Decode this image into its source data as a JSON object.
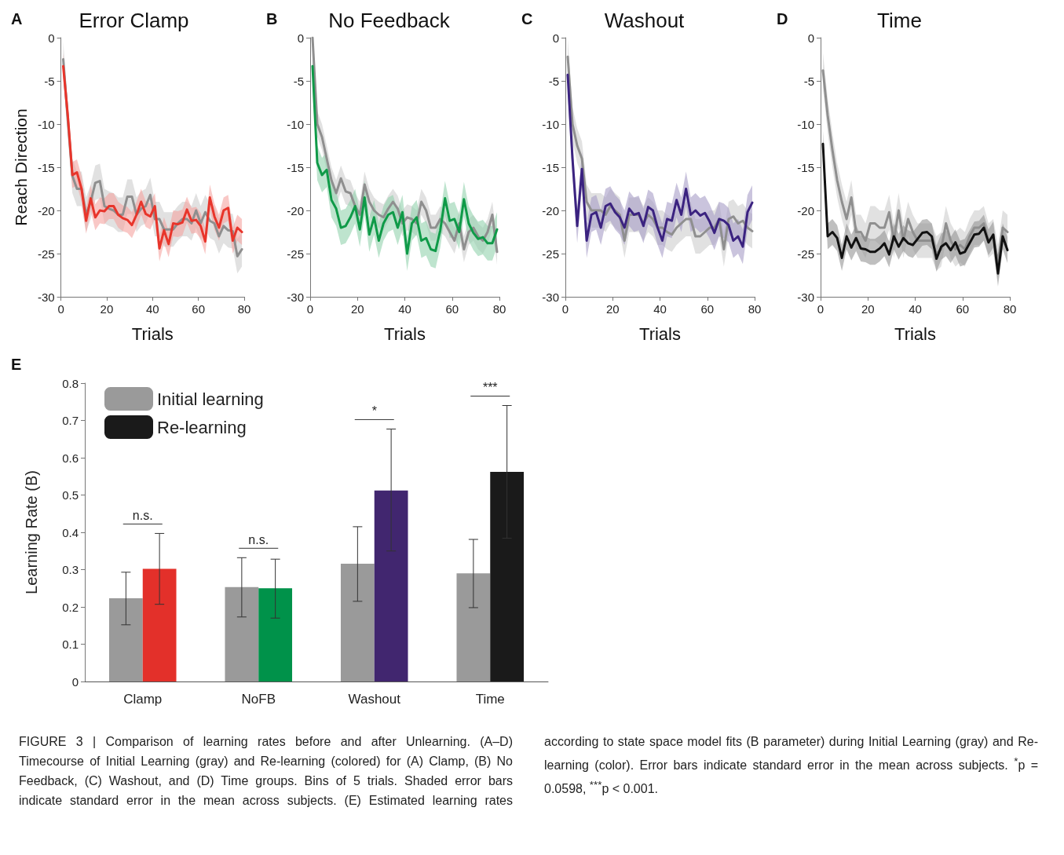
{
  "chart_data": [
    {
      "type": "line",
      "title": "Error Clamp",
      "xlabel": "Trials",
      "ylabel": "Reach Direction",
      "annotations": [
        "A"
      ],
      "xlim": [
        0,
        80
      ],
      "xticks": [
        0,
        20,
        40,
        60,
        80
      ],
      "ylim": [
        -30,
        0
      ],
      "yticks": [
        -30,
        -25,
        -20,
        -15,
        -10,
        -5,
        0
      ],
      "grid": false,
      "legend": false,
      "marker": "none",
      "line_style": "solid",
      "x": [
        1,
        3,
        5,
        7,
        9,
        11,
        13,
        15,
        17,
        19,
        21,
        23,
        25,
        27,
        29,
        31,
        33,
        35,
        37,
        39,
        41,
        43,
        45,
        47,
        49,
        51,
        53,
        55,
        57,
        59,
        61,
        63,
        65,
        67,
        69,
        71,
        73,
        75,
        77,
        79
      ],
      "series": [
        {
          "color": "#8f8f8f",
          "values": [
            -2.5,
            -9.5,
            -16,
            -17.5,
            -17.5,
            -20.5,
            -19,
            -16.8,
            -16.6,
            -19.5,
            -19.8,
            -20,
            -20.5,
            -20.5,
            -18.4,
            -18.4,
            -20.5,
            -19.8,
            -19.5,
            -18.2,
            -21,
            -21,
            -22.2,
            -22.2,
            -22.2,
            -21.5,
            -21,
            -21,
            -21.5,
            -20,
            -21.5,
            -20.2,
            -21.2,
            -21.5,
            -23,
            -21.8,
            -22.3,
            -22.4,
            -25.3,
            -24.5
          ],
          "lower": [
            -4.5,
            -11.5,
            -18,
            -19.5,
            -19.5,
            -22.5,
            -21,
            -18.8,
            -18.6,
            -21.5,
            -21.8,
            -22,
            -22.5,
            -22.5,
            -20.4,
            -20.4,
            -22.5,
            -21.8,
            -21.5,
            -20.2,
            -23,
            -23,
            -24.2,
            -24.2,
            -24.2,
            -23.5,
            -23,
            -23,
            -23.5,
            -22,
            -23.5,
            -22.2,
            -23.2,
            -23.5,
            -25,
            -23.8,
            -24.3,
            -24.4,
            -27.3,
            -26.5
          ],
          "upper": [
            -0.5,
            -7.5,
            -14,
            -15.5,
            -15.5,
            -18.5,
            -17,
            -14.8,
            -14.6,
            -17.5,
            -17.8,
            -18,
            -18.5,
            -18.5,
            -16.4,
            -16.4,
            -18.5,
            -17.8,
            -17.5,
            -16.2,
            -19,
            -19,
            -20.2,
            -20.2,
            -20.2,
            -19.5,
            -19,
            -19,
            -19.5,
            -18,
            -19.5,
            -18.2,
            -19.2,
            -19.5,
            -21,
            -19.8,
            -20.3,
            -20.4,
            -23.3,
            -22.5
          ]
        },
        {
          "color": "#e8352b",
          "values": [
            -3.3,
            -9,
            -15.9,
            -15.6,
            -17.5,
            -21.2,
            -18.6,
            -20.8,
            -20,
            -20.1,
            -19.5,
            -19.5,
            -20.5,
            -20.9,
            -21.1,
            -21.7,
            -20.5,
            -19,
            -20.4,
            -20.7,
            -19.5,
            -24.4,
            -22.3,
            -23.9,
            -21.5,
            -21.6,
            -21.4,
            -19.9,
            -21.2,
            -21.1,
            -21.8,
            -23.6,
            -18.5,
            -20.7,
            -22,
            -20,
            -19.7,
            -23.5,
            -22,
            -22.5
          ],
          "lower": [
            -4.8,
            -10.5,
            -17.4,
            -17.1,
            -19,
            -22.7,
            -20.1,
            -22.3,
            -21.5,
            -21.6,
            -21,
            -21,
            -22,
            -22.4,
            -22.6,
            -23.2,
            -22,
            -20.5,
            -21.9,
            -22.2,
            -21,
            -25.9,
            -23.8,
            -25.4,
            -23,
            -23.1,
            -22.9,
            -21.4,
            -22.7,
            -22.6,
            -23.3,
            -25.1,
            -20,
            -22.2,
            -23.5,
            -21.5,
            -21.2,
            -25,
            -23.5,
            -24
          ],
          "upper": [
            -1.8,
            -7.5,
            -14.4,
            -14.1,
            -16,
            -19.7,
            -17.1,
            -19.3,
            -18.5,
            -18.6,
            -18,
            -18,
            -19,
            -19.4,
            -19.6,
            -20.2,
            -19,
            -17.5,
            -18.9,
            -19.2,
            -18,
            -22.9,
            -20.8,
            -22.4,
            -20,
            -20.1,
            -19.9,
            -18.4,
            -19.7,
            -19.6,
            -20.3,
            -22.1,
            -17,
            -19.2,
            -20.5,
            -18.5,
            -18.2,
            -22,
            -20.5,
            -21
          ]
        }
      ]
    },
    {
      "type": "line",
      "title": "No Feedback",
      "xlabel": "Trials",
      "annotations": [
        "B"
      ],
      "xlim": [
        0,
        80
      ],
      "xticks": [
        0,
        20,
        40,
        60,
        80
      ],
      "ylim": [
        -30,
        0
      ],
      "yticks": [
        -30,
        -25,
        -20,
        -15,
        -10,
        -5,
        0
      ],
      "grid": false,
      "legend": false,
      "marker": "none",
      "line_style": "solid",
      "x": [
        1,
        3,
        5,
        7,
        9,
        11,
        13,
        15,
        17,
        19,
        21,
        23,
        25,
        27,
        29,
        31,
        33,
        35,
        37,
        39,
        41,
        43,
        45,
        47,
        49,
        51,
        53,
        55,
        57,
        59,
        61,
        63,
        65,
        67,
        69,
        71,
        73,
        75,
        77,
        79
      ],
      "series": [
        {
          "color": "#8f8f8f",
          "values": [
            0,
            -10,
            -11.5,
            -14,
            -16.5,
            -18,
            -16.3,
            -17.8,
            -18,
            -19.5,
            -20.5,
            -17,
            -19,
            -20,
            -20.5,
            -20.8,
            -19.8,
            -19,
            -19.8,
            -21.5,
            -20.8,
            -21,
            -21.5,
            -19,
            -20,
            -22,
            -22,
            -21,
            -21.5,
            -22.5,
            -23.5,
            -21.5,
            -24.5,
            -22.5,
            -22,
            -23,
            -23.5,
            -22.5,
            -20.5,
            -24.8
          ],
          "lower": [
            -1.5,
            -11.5,
            -13,
            -15.5,
            -18,
            -19.5,
            -17.8,
            -19.3,
            -19.5,
            -21,
            -22,
            -18.5,
            -20.5,
            -21.5,
            -22,
            -22.3,
            -21.3,
            -20.5,
            -21.3,
            -23,
            -22.3,
            -22.5,
            -23,
            -20.5,
            -21.5,
            -23.5,
            -23.5,
            -22.5,
            -23,
            -24,
            -25,
            -23,
            -26,
            -24,
            -23.5,
            -24.5,
            -25,
            -24,
            -22,
            -26.3
          ],
          "upper": [
            0,
            -8.5,
            -10,
            -12.5,
            -15,
            -16.5,
            -14.8,
            -16.3,
            -16.5,
            -18,
            -19,
            -15.5,
            -17.5,
            -18.5,
            -19,
            -19.3,
            -18.3,
            -17.5,
            -18.3,
            -20,
            -19.3,
            -19.5,
            -20,
            -17.5,
            -18.5,
            -20.5,
            -20.5,
            -19.5,
            -20,
            -21,
            -22,
            -20,
            -23,
            -21,
            -20.5,
            -21.5,
            -22,
            -21,
            -19,
            -23.3
          ]
        },
        {
          "color": "#0f9a48",
          "values": [
            -3.3,
            -14.5,
            -15.9,
            -15.3,
            -18.8,
            -19.8,
            -22,
            -21.8,
            -20.8,
            -19.5,
            -22.2,
            -18.5,
            -22.8,
            -20.8,
            -23.5,
            -21.5,
            -20.5,
            -20.2,
            -22,
            -20.2,
            -25,
            -21.5,
            -20.8,
            -23.5,
            -23.2,
            -24.5,
            -24.7,
            -22.3,
            -18.6,
            -21.2,
            -21,
            -22.5,
            -18.7,
            -21.5,
            -22.6,
            -23.3,
            -23.1,
            -23.8,
            -23.8,
            -22.2
          ],
          "lower": [
            -5.3,
            -16.5,
            -17.9,
            -17.3,
            -20.8,
            -21.8,
            -24,
            -23.8,
            -22.8,
            -21.5,
            -24.2,
            -20.5,
            -24.8,
            -22.8,
            -25.5,
            -23.5,
            -22.5,
            -22.2,
            -24,
            -22.2,
            -27,
            -23.5,
            -22.8,
            -25.5,
            -25.2,
            -26.5,
            -26.7,
            -24.3,
            -20.6,
            -23.2,
            -23,
            -24.5,
            -20.7,
            -23.5,
            -24.6,
            -25.3,
            -25.1,
            -25.8,
            -25.8,
            -24.2
          ],
          "upper": [
            -1.3,
            -12.5,
            -13.9,
            -13.3,
            -16.8,
            -17.8,
            -20,
            -19.8,
            -18.8,
            -17.5,
            -20.2,
            -16.5,
            -20.8,
            -18.8,
            -21.5,
            -19.5,
            -18.5,
            -18.2,
            -20,
            -18.2,
            -23,
            -19.5,
            -18.8,
            -21.5,
            -21.2,
            -22.5,
            -22.7,
            -20.3,
            -16.6,
            -19.2,
            -19,
            -20.5,
            -16.7,
            -19.5,
            -20.6,
            -21.3,
            -21.1,
            -21.8,
            -21.8,
            -20.2
          ]
        }
      ]
    },
    {
      "type": "line",
      "title": "Washout",
      "xlabel": "Trials",
      "annotations": [
        "C"
      ],
      "xlim": [
        0,
        80
      ],
      "xticks": [
        0,
        20,
        40,
        60,
        80
      ],
      "ylim": [
        -30,
        0
      ],
      "yticks": [
        -30,
        -25,
        -20,
        -15,
        -10,
        -5,
        0
      ],
      "grid": false,
      "legend": false,
      "marker": "none",
      "line_style": "solid",
      "x": [
        1,
        3,
        5,
        7,
        9,
        11,
        13,
        15,
        17,
        19,
        21,
        23,
        25,
        27,
        29,
        31,
        33,
        35,
        37,
        39,
        41,
        43,
        45,
        47,
        49,
        51,
        53,
        55,
        57,
        59,
        61,
        63,
        65,
        67,
        69,
        71,
        73,
        75,
        77,
        79
      ],
      "series": [
        {
          "color": "#8f8f8f",
          "values": [
            -2.2,
            -10,
            -12.5,
            -14,
            -19,
            -20,
            -20,
            -20,
            -20.5,
            -19.5,
            -20,
            -20.5,
            -23.5,
            -20.5,
            -20.5,
            -20.5,
            -21.5,
            -20.5,
            -21,
            -22,
            -22,
            -22.5,
            -22.8,
            -22,
            -21.5,
            -21,
            -21,
            -23,
            -23,
            -22.5,
            -22,
            -22,
            -21,
            -24.5,
            -21,
            -20.7,
            -21.5,
            -21.2,
            -22,
            -22.4
          ],
          "lower": [
            -4.2,
            -12,
            -14.5,
            -16,
            -21,
            -22,
            -22,
            -22,
            -22.5,
            -21.5,
            -22,
            -22.5,
            -25.5,
            -22.5,
            -22.5,
            -22.5,
            -23.5,
            -22.5,
            -23,
            -24,
            -24,
            -24.5,
            -24.8,
            -24,
            -23.5,
            -23,
            -23,
            -25,
            -25,
            -24.5,
            -24,
            -24,
            -23,
            -26.5,
            -23,
            -22.7,
            -23.5,
            -23.2,
            -24,
            -24.4
          ],
          "upper": [
            -0.2,
            -8,
            -10.5,
            -12,
            -17,
            -18,
            -18,
            -18,
            -18.5,
            -17.5,
            -18,
            -18.5,
            -21.5,
            -18.5,
            -18.5,
            -18.5,
            -19.5,
            -18.5,
            -19,
            -20,
            -20,
            -20.5,
            -20.8,
            -20,
            -19.5,
            -19,
            -19,
            -21,
            -21,
            -20.5,
            -20,
            -20,
            -19,
            -22.5,
            -19,
            -18.7,
            -19.5,
            -19.2,
            -20,
            -20.4
          ]
        },
        {
          "color": "#3b2380",
          "values": [
            -4.3,
            -14,
            -21.8,
            -15.2,
            -23.5,
            -20.5,
            -20.2,
            -22,
            -19.5,
            -19.2,
            -20.2,
            -20.8,
            -22,
            -19.8,
            -20.5,
            -20.3,
            -21.8,
            -19.6,
            -20,
            -22,
            -23.5,
            -21,
            -21.2,
            -18.8,
            -20.5,
            -17.5,
            -20.5,
            -20,
            -20.6,
            -20.3,
            -21.3,
            -22.6,
            -21,
            -21.2,
            -21.7,
            -23.5,
            -23,
            -24.2,
            -20.2,
            -19.1
          ],
          "lower": [
            -6.3,
            -16,
            -23.8,
            -17.2,
            -25.5,
            -22.5,
            -22.2,
            -24,
            -21.5,
            -21.2,
            -22.2,
            -22.8,
            -24,
            -21.8,
            -22.5,
            -22.3,
            -23.8,
            -21.6,
            -22,
            -24,
            -25.5,
            -23,
            -23.2,
            -20.8,
            -22.5,
            -19.5,
            -22.5,
            -22,
            -22.6,
            -22.3,
            -23.3,
            -24.6,
            -23,
            -23.2,
            -23.7,
            -25.5,
            -25,
            -26.2,
            -22.2,
            -21.1
          ],
          "upper": [
            -2.3,
            -12,
            -19.8,
            -13.2,
            -21.5,
            -18.5,
            -18.2,
            -20,
            -17.5,
            -17.2,
            -18.2,
            -18.8,
            -20,
            -17.8,
            -18.5,
            -18.3,
            -19.8,
            -17.6,
            -18,
            -20,
            -21.5,
            -19,
            -19.2,
            -16.8,
            -18.5,
            -15.5,
            -18.5,
            -18,
            -18.6,
            -18.3,
            -19.3,
            -20.6,
            -19,
            -19.2,
            -19.7,
            -21.5,
            -21,
            -22.2,
            -18.2,
            -17.1
          ]
        }
      ]
    },
    {
      "type": "line",
      "title": "Time",
      "xlabel": "Trials",
      "annotations": [
        "D"
      ],
      "xlim": [
        0,
        80
      ],
      "xticks": [
        0,
        20,
        40,
        60,
        80
      ],
      "ylim": [
        -30,
        0
      ],
      "yticks": [
        -30,
        -25,
        -20,
        -15,
        -10,
        -5,
        0
      ],
      "grid": false,
      "legend": false,
      "marker": "none",
      "line_style": "solid",
      "x": [
        1,
        3,
        5,
        7,
        9,
        11,
        13,
        15,
        17,
        19,
        21,
        23,
        25,
        27,
        29,
        31,
        33,
        35,
        37,
        39,
        41,
        43,
        45,
        47,
        49,
        51,
        53,
        55,
        57,
        59,
        61,
        63,
        65,
        67,
        69,
        71,
        73,
        75,
        77,
        79
      ],
      "series": [
        {
          "color": "#8f8f8f",
          "values": [
            -3.8,
            -9,
            -13,
            -16.5,
            -19,
            -21,
            -18.5,
            -22.5,
            -22.5,
            -23.5,
            -21.5,
            -21.5,
            -22,
            -22,
            -20.2,
            -23.5,
            -20,
            -23.5,
            -21,
            -22.5,
            -23.5,
            -23.5,
            -23.5,
            -23.5,
            -25,
            -24.5,
            -21.5,
            -23.5,
            -24.5,
            -24,
            -24.5,
            -23,
            -22,
            -22,
            -21.5,
            -23.5,
            -23,
            -26,
            -22,
            -22.5
          ],
          "lower": [
            -5.8,
            -11,
            -15,
            -18.5,
            -21,
            -23,
            -20.5,
            -24.5,
            -24.5,
            -25.5,
            -23.5,
            -23.5,
            -24,
            -24,
            -22.2,
            -25.5,
            -22,
            -25.5,
            -23,
            -24.5,
            -25.5,
            -25.5,
            -25.5,
            -25.5,
            -27,
            -26.5,
            -23.5,
            -25.5,
            -26.5,
            -26,
            -26.5,
            -25,
            -24,
            -24,
            -23.5,
            -25.5,
            -25,
            -28,
            -24,
            -24.5
          ],
          "upper": [
            -1.8,
            -7,
            -11,
            -14.5,
            -17,
            -19,
            -16.5,
            -20.5,
            -20.5,
            -21.5,
            -19.5,
            -19.5,
            -20,
            -20,
            -18.2,
            -21.5,
            -18,
            -21.5,
            -19,
            -20.5,
            -21.5,
            -21.5,
            -21.5,
            -21.5,
            -23,
            -22.5,
            -19.5,
            -21.5,
            -22.5,
            -22,
            -22.5,
            -21,
            -20,
            -20,
            -19.5,
            -21.5,
            -21,
            -24,
            -20,
            -20.5
          ]
        },
        {
          "color": "#111111",
          "values": [
            -12.3,
            -23,
            -22.5,
            -23.2,
            -25.5,
            -23,
            -24.3,
            -23.2,
            -24.4,
            -24.5,
            -24.8,
            -24.8,
            -24.4,
            -23.8,
            -25.1,
            -23,
            -24.2,
            -23.2,
            -23.8,
            -24,
            -23.3,
            -22.6,
            -22.5,
            -23,
            -25.6,
            -24.2,
            -23.8,
            -24.6,
            -23.7,
            -25,
            -24.8,
            -23.8,
            -22.8,
            -22.7,
            -22,
            -23.7,
            -22.8,
            -27.3,
            -23,
            -24.6
          ],
          "lower": [
            -13.8,
            -24.5,
            -24,
            -24.7,
            -27,
            -24.5,
            -25.8,
            -24.7,
            -25.9,
            -26,
            -26.3,
            -26.3,
            -25.9,
            -25.3,
            -26.6,
            -24.5,
            -25.7,
            -24.7,
            -25.3,
            -25.5,
            -24.8,
            -24.1,
            -24,
            -24.5,
            -27.1,
            -25.7,
            -25.3,
            -26.1,
            -25.2,
            -26.5,
            -26.3,
            -25.3,
            -24.3,
            -24.2,
            -23.5,
            -25.2,
            -24.3,
            -28.8,
            -24.5,
            -26.1
          ],
          "upper": [
            -10.8,
            -21.5,
            -21,
            -21.7,
            -24,
            -21.5,
            -22.8,
            -21.7,
            -22.9,
            -23,
            -23.3,
            -23.3,
            -22.9,
            -22.3,
            -23.6,
            -21.5,
            -22.7,
            -21.7,
            -22.3,
            -22.5,
            -21.8,
            -21.1,
            -21,
            -21.5,
            -24.1,
            -22.7,
            -22.3,
            -23.1,
            -22.2,
            -23.5,
            -23.3,
            -22.3,
            -21.3,
            -21.2,
            -20.5,
            -22.2,
            -21.3,
            -25.8,
            -21.5,
            -23.1
          ]
        }
      ]
    },
    {
      "type": "bar",
      "ylabel": "Learning Rate (B)",
      "categories": [
        "Clamp",
        "NoFB",
        "Washout",
        "Time"
      ],
      "ylim": [
        0,
        0.8
      ],
      "yticks": [
        0,
        0.1,
        0.2,
        0.3,
        0.4,
        0.5,
        0.6,
        0.7,
        0.8
      ],
      "grid": false,
      "legend": "top left",
      "series": [
        {
          "name": "Initial learning",
          "color": "#9a9a9a",
          "values": [
            0.223,
            0.253,
            0.316,
            0.29
          ],
          "errors": [
            [
              0.152,
              0.293
            ],
            [
              0.173,
              0.332
            ],
            [
              0.215,
              0.415
            ],
            [
              0.198,
              0.381
            ]
          ]
        },
        {
          "name": "Re-learning",
          "color": "#1a1a1a",
          "colors": [
            "#e3302a",
            "#00924a",
            "#41266f",
            "#1a1a1a"
          ],
          "values": [
            0.302,
            0.25,
            0.512,
            0.562
          ],
          "errors": [
            [
              0.207,
              0.397
            ],
            [
              0.17,
              0.328
            ],
            [
              0.35,
              0.677
            ],
            [
              0.384,
              0.74
            ]
          ]
        }
      ],
      "annotations": [
        "E",
        "n.s.",
        "n.s.",
        "*",
        "***",
        "FIGURE 3 | Comparison of learning rates before and after Unlearning. (A–D) Timecourse of Initial Learning (gray) and Re-learning (colored) for (A) Clamp, (B) No Feedback, (C) Washout, and (D) Time groups. Bins of 5 trials. Shaded error bars indicate standard error in the mean across subjects. (E) Estimated learning rates according to state space model fits (B parameter) during Initial Learning (gray) and Re-learning (color). Error bars indicate standard error in the mean across subjects. $^{*}$p = 0.0598, $^{***}$p < 0.001."
      ]
    }
  ]
}
